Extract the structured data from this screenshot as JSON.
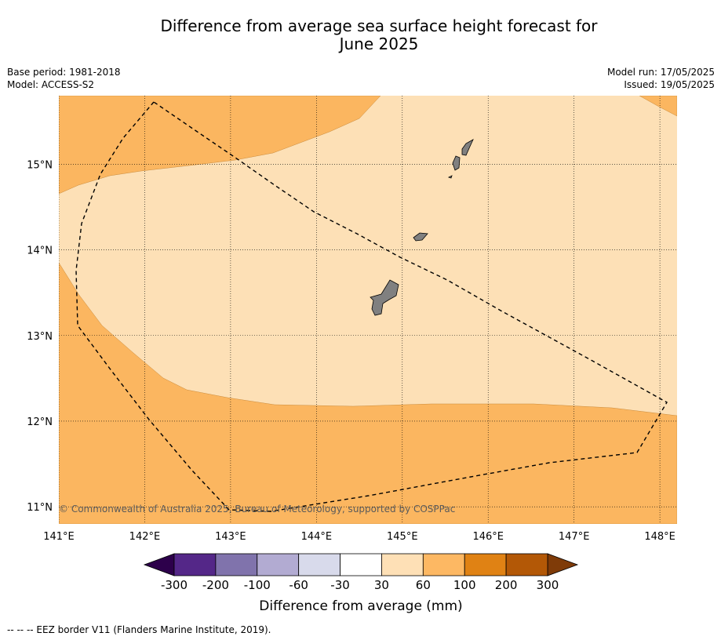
{
  "title_line1": "Difference from average sea surface height forecast for",
  "title_line2": "June 2025",
  "meta": {
    "base_period": "Base period: 1981-2018",
    "model": "Model: ACCESS-S2",
    "model_run": "Model run: 17/05/2025",
    "issued": "Issued: 19/05/2025"
  },
  "map": {
    "lon_range": [
      141.0,
      148.2
    ],
    "lat_range": [
      10.8,
      15.8
    ],
    "lon_ticks": [
      {
        "value": 141,
        "label": "141°E"
      },
      {
        "value": 142,
        "label": "142°E"
      },
      {
        "value": 143,
        "label": "143°E"
      },
      {
        "value": 144,
        "label": "144°E"
      },
      {
        "value": 145,
        "label": "145°E"
      },
      {
        "value": 146,
        "label": "146°E"
      },
      {
        "value": 147,
        "label": "147°E"
      },
      {
        "value": 148,
        "label": "148°E"
      }
    ],
    "lat_ticks": [
      {
        "value": 11,
        "label": "11°N"
      },
      {
        "value": 12,
        "label": "12°N"
      },
      {
        "value": 13,
        "label": "13°N"
      },
      {
        "value": 14,
        "label": "14°N"
      },
      {
        "value": 15,
        "label": "15°N"
      }
    ],
    "colors": {
      "band_30_60": "#fde0b6",
      "band_60_100": "#fbb660",
      "land": "#808080"
    },
    "copyright": "© Commonwealth of Australia 2025, Bureau of Meteorology, supported by COSPPac"
  },
  "colorbar": {
    "title": "Difference from average (mm)",
    "tick_labels": [
      "-300",
      "-200",
      "-100",
      "-60",
      "-30",
      "30",
      "60",
      "100",
      "200",
      "300"
    ],
    "colors": [
      "#542788",
      "#8073ac",
      "#b2abd2",
      "#d8daeb",
      "#ffffff",
      "#fee0b6",
      "#fdb863",
      "#e08214",
      "#b35806"
    ],
    "under_color": "#2d004b",
    "over_color": "#7f3b08"
  },
  "footer": "--  --  -- EEZ border V11 (Flanders Marine Institute, 2019)."
}
